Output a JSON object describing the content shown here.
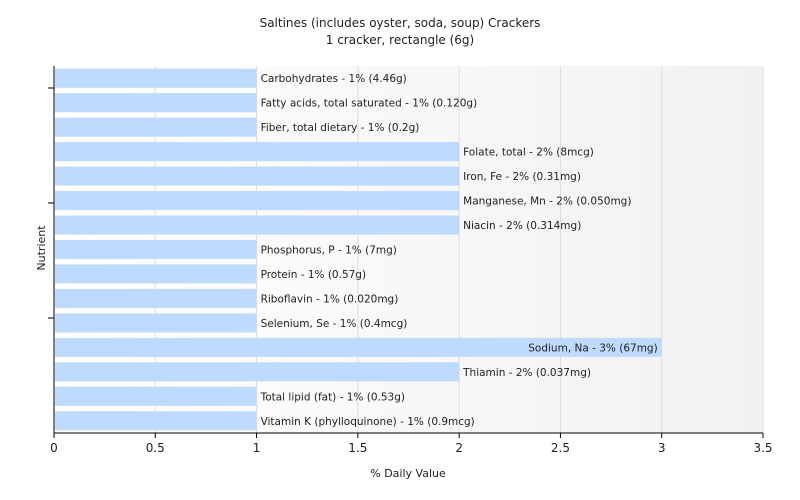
{
  "chart_data": {
    "type": "bar",
    "orientation": "horizontal",
    "title": "Saltines (includes oyster, soda, soup) Crackers",
    "subtitle": "1 cracker, rectangle (6g)",
    "xlabel": "% Daily Value",
    "ylabel": "Nutrient",
    "xlim": [
      0,
      3.5
    ],
    "xticks": [
      "0",
      "0.5",
      "1",
      "1.5",
      "2",
      "2.5",
      "3",
      "3.5"
    ],
    "grid": "vertical",
    "bar_color": "#bfdaff",
    "categories": [
      "Carbohydrates",
      "Fatty acids, total saturated",
      "Fiber, total dietary",
      "Folate, total",
      "Iron, Fe",
      "Manganese, Mn",
      "Niacin",
      "Phosphorus, P",
      "Protein",
      "Riboflavin",
      "Selenium, Se",
      "Sodium, Na",
      "Thiamin",
      "Total lipid (fat)",
      "Vitamin K (phylloquinone)"
    ],
    "values": [
      1,
      1,
      1,
      2,
      2,
      2,
      2,
      1,
      1,
      1,
      1,
      3,
      2,
      1,
      1
    ],
    "labels": [
      "Carbohydrates - 1% (4.46g)",
      "Fatty acids, total saturated - 1% (0.120g)",
      "Fiber, total dietary - 1% (0.2g)",
      "Folate, total - 2% (8mcg)",
      "Iron, Fe - 2% (0.31mg)",
      "Manganese, Mn - 2% (0.050mg)",
      "Niacin - 2% (0.314mg)",
      "Phosphorus, P - 1% (7mg)",
      "Protein - 1% (0.57g)",
      "Riboflavin - 1% (0.020mg)",
      "Selenium, Se - 1% (0.4mcg)",
      "Sodium, Na - 3% (67mg)",
      "Thiamin - 2% (0.037mg)",
      "Total lipid (fat) - 1% (0.53g)",
      "Vitamin K (phylloquinone) - 1% (0.9mcg)"
    ]
  }
}
